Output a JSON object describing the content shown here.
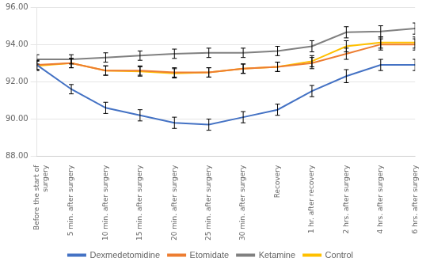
{
  "chart_data": {
    "type": "line",
    "categories": [
      "Before the start of\nsurgery",
      "5 min. after surgery",
      "10 min. after surgery",
      "15 min. after surgery",
      "20 min. after surgery",
      "25 min. after surgery",
      "30 min. after surgery",
      "Recovery",
      "1 hr. after recovery",
      "2 hrs. after surgery",
      "4 hrs. after surgery",
      "6 hrs. after surgery"
    ],
    "series": [
      {
        "name": "Dexmedetomidine",
        "color": "#4472C4",
        "values": [
          92.9,
          91.6,
          90.6,
          90.2,
          89.8,
          89.7,
          90.1,
          90.5,
          91.5,
          92.3,
          92.9,
          92.9
        ],
        "errors": [
          0.25,
          0.25,
          0.3,
          0.3,
          0.3,
          0.3,
          0.3,
          0.3,
          0.3,
          0.35,
          0.3,
          0.3
        ]
      },
      {
        "name": "Etomidate",
        "color": "#ED7D31",
        "values": [
          92.9,
          93.0,
          92.6,
          92.6,
          92.5,
          92.5,
          92.7,
          92.8,
          93.0,
          93.5,
          94.0,
          94.0
        ],
        "errors": [
          0.25,
          0.25,
          0.25,
          0.25,
          0.25,
          0.25,
          0.25,
          0.25,
          0.3,
          0.3,
          0.3,
          0.3
        ]
      },
      {
        "name": "Ketamine",
        "color": "#808080",
        "values": [
          93.2,
          93.2,
          93.3,
          93.4,
          93.5,
          93.55,
          93.55,
          93.65,
          93.9,
          94.65,
          94.7,
          94.85
        ],
        "errors": [
          0.25,
          0.25,
          0.25,
          0.25,
          0.25,
          0.25,
          0.25,
          0.25,
          0.3,
          0.3,
          0.3,
          0.3
        ]
      },
      {
        "name": "Control",
        "color": "#FFC000",
        "values": [
          92.85,
          93.0,
          92.6,
          92.55,
          92.45,
          92.5,
          92.7,
          92.8,
          93.1,
          93.9,
          94.1,
          94.1
        ],
        "errors": [
          0.25,
          0.25,
          0.25,
          0.25,
          0.25,
          0.25,
          0.25,
          0.25,
          0.3,
          0.3,
          0.3,
          0.3
        ]
      }
    ],
    "ylim": [
      88.0,
      96.0
    ],
    "yticks": [
      {
        "value": 88.0,
        "label": "88.00"
      },
      {
        "value": 90.0,
        "label": "90.00"
      },
      {
        "value": 92.0,
        "label": "92.00"
      },
      {
        "value": 94.0,
        "label": "94.00"
      },
      {
        "value": 96.0,
        "label": "96.00"
      }
    ],
    "grid": true,
    "legend": "bottom"
  }
}
